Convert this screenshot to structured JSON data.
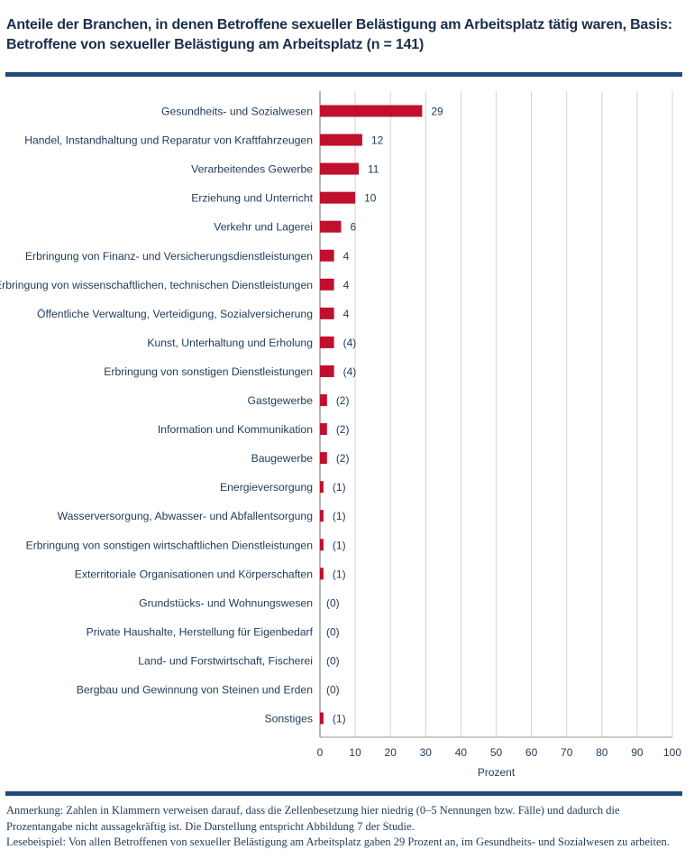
{
  "chart_data": {
    "type": "bar",
    "orientation": "horizontal",
    "title": "Anteile der Branchen, in denen Betroffene sexueller Belästigung am Arbeitsplatz tätig waren, Basis: Betroffene von sexueller Belästigung am Arbeitsplatz (n = 141)",
    "xlabel": "Prozent",
    "xlim": [
      0,
      100
    ],
    "xticks": [
      0,
      10,
      20,
      30,
      40,
      50,
      60,
      70,
      80,
      90,
      100
    ],
    "grid": true,
    "bar_color": "#c0102e",
    "categories": [
      "Gesundheits- und Sozialwesen",
      "Handel, Instandhaltung und Reparatur von Kraftfahrzeugen",
      "Verarbeitendes Gewerbe",
      "Erziehung und Unterricht",
      "Verkehr und Lagerei",
      "Erbringung von Finanz- und Versicherungsdienstleistungen",
      "Erbringung von wissenschaftlichen, technischen Dienstleistungen",
      "Öffentliche Verwaltung, Verteidigung, Sozialversicherung",
      "Kunst, Unterhaltung und Erholung",
      "Erbringung von sonstigen Dienstleistungen",
      "Gastgewerbe",
      "Information und Kommunikation",
      "Baugewerbe",
      "Energieversorgung",
      "Wasserversorgung, Abwasser- und Abfallentsorgung",
      "Erbringung von sonstigen wirtschaftlichen Dienstleistungen",
      "Exterritoriale Organisationen und Körperschaften",
      "Grundstücks- und Wohnungswesen",
      "Private Haushalte, Herstellung für Eigenbedarf",
      "Land- und Forstwirtschaft, Fischerei",
      "Bergbau und Gewinnung von Steinen und Erden",
      "Sonstiges"
    ],
    "values": [
      29,
      12,
      11,
      10,
      6,
      4,
      4,
      4,
      4,
      4,
      2,
      2,
      2,
      1,
      1,
      1,
      1,
      0,
      0,
      0,
      0,
      1
    ],
    "value_labels": [
      "29",
      "12",
      "11",
      "10",
      "6",
      "4",
      "4",
      "4",
      "(4)",
      "(4)",
      "(2)",
      "(2)",
      "(2)",
      "(1)",
      "(1)",
      "(1)",
      "(1)",
      "(0)",
      "(0)",
      "(0)",
      "(0)",
      "(1)"
    ]
  },
  "notes": {
    "anmerkung": "Anmerkung: Zahlen in Klammern verweisen darauf, dass die Zellenbesetzung hier niedrig (0–5 Nennungen bzw. Fälle) und dadurch die Prozentangabe nicht aussagekräftig ist. Die Darstellung entspricht Abbildung 7 der Studie.",
    "lesebeispiel": "Lesebeispiel: Von allen Betroffenen von sexueller Belästigung am Arbeitsplatz gaben 29 Prozent an, im Gesundheits- und Sozialwesen zu arbeiten."
  }
}
